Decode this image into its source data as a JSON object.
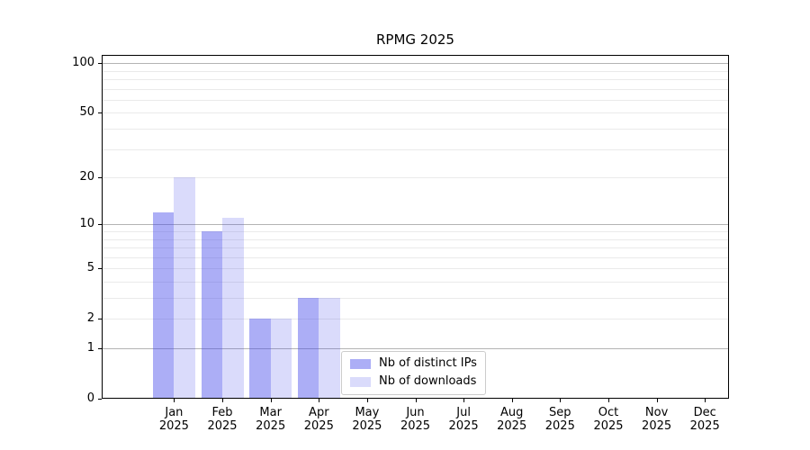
{
  "chart_data": {
    "type": "bar",
    "title": "RPMG 2025",
    "categories": [
      "Jan 2025",
      "Feb 2025",
      "Mar 2025",
      "Apr 2025",
      "May 2025",
      "Jun 2025",
      "Jul 2025",
      "Aug 2025",
      "Sep 2025",
      "Oct 2025",
      "Nov 2025",
      "Dec 2025"
    ],
    "series": [
      {
        "name": "Nb of distinct IPs",
        "color": "rgba(70,75,235,0.45)",
        "values": [
          12,
          9,
          2,
          3,
          0,
          0,
          0,
          0,
          0,
          0,
          0,
          0
        ]
      },
      {
        "name": "Nb of downloads",
        "color": "rgba(70,75,235,0.20)",
        "values": [
          20,
          11,
          2,
          3,
          0,
          0,
          0,
          0,
          0,
          0,
          0,
          0
        ]
      }
    ],
    "xlabel": "",
    "ylabel": "",
    "yscale": "log1p",
    "ylim": [
      0,
      112
    ],
    "xlim": [
      -1,
      12
    ],
    "yticks": [
      0,
      1,
      2,
      5,
      10,
      20,
      50,
      100
    ],
    "grid_major": [
      1,
      10,
      100
    ],
    "grid_minor": [
      2,
      3,
      4,
      5,
      6,
      7,
      8,
      9,
      20,
      30,
      40,
      50,
      60,
      70,
      80,
      90
    ],
    "grid": "on",
    "legend_position": "lower center"
  },
  "colors": {
    "grid_major": "#b3b3b3",
    "grid_minor": "#eaeaea",
    "spine": "#000000",
    "background": "#ffffff"
  }
}
